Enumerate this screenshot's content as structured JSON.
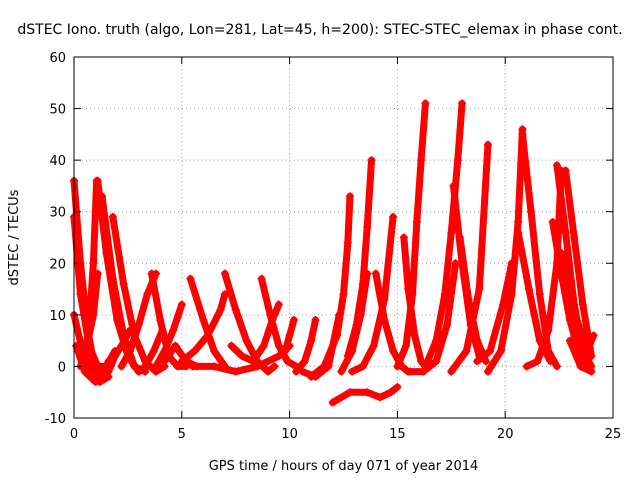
{
  "chart_data": {
    "type": "line",
    "title": "dSTEC Iono. truth (algo, Lon=281, Lat=45, h=200): STEC-STEC_elemax in phase cont.",
    "xlabel": "GPS time / hours of day 071 of year 2014",
    "ylabel": "dSTEC  / TECUs",
    "xlim": [
      0,
      25
    ],
    "ylim": [
      -10,
      60
    ],
    "xticks": [
      0,
      5,
      10,
      15,
      20,
      25
    ],
    "yticks": [
      -10,
      0,
      10,
      20,
      30,
      40,
      50,
      60
    ],
    "grid": true,
    "legend": "none",
    "marker": "plus",
    "series_color": "#ff0000",
    "series": [
      {
        "x": [
          0.0,
          0.3,
          0.6,
          0.9,
          1.2,
          1.5,
          1.8
        ],
        "y": [
          36,
          20,
          8,
          1,
          -2,
          -1,
          2
        ]
      },
      {
        "x": [
          0.0,
          0.3,
          0.7,
          1.1,
          1.5,
          1.9
        ],
        "y": [
          29,
          14,
          4,
          0,
          0,
          3
        ]
      },
      {
        "x": [
          0.0,
          0.4,
          0.8,
          1.2,
          1.6
        ],
        "y": [
          10,
          3,
          -1,
          -3,
          -2
        ]
      },
      {
        "x": [
          0.1,
          0.5,
          1.0,
          1.3,
          1.6
        ],
        "y": [
          4,
          -1,
          -3,
          -2,
          1
        ]
      },
      {
        "x": [
          0.3,
          0.6,
          0.9,
          1.1
        ],
        "y": [
          0,
          4,
          10,
          18
        ]
      },
      {
        "x": [
          0.5,
          0.7,
          0.9,
          1.05
        ],
        "y": [
          1,
          8,
          20,
          36
        ]
      },
      {
        "x": [
          1.1,
          1.5,
          2.0,
          2.5,
          3.0,
          3.4
        ],
        "y": [
          36,
          22,
          9,
          2,
          -1,
          0
        ]
      },
      {
        "x": [
          1.3,
          1.8,
          2.3,
          2.8,
          3.3
        ],
        "y": [
          33,
          17,
          6,
          0,
          -1
        ]
      },
      {
        "x": [
          1.6,
          1.9,
          2.2,
          2.6
        ],
        "y": [
          -1,
          2,
          4,
          7
        ]
      },
      {
        "x": [
          1.8,
          2.3,
          2.8,
          3.3,
          3.8,
          4.2
        ],
        "y": [
          29,
          16,
          6,
          1,
          -1,
          0
        ]
      },
      {
        "x": [
          2.2,
          2.6,
          3.0,
          3.4,
          3.8
        ],
        "y": [
          0,
          3,
          8,
          14,
          18
        ]
      },
      {
        "x": [
          3.6,
          4.0,
          4.4,
          4.8,
          5.2
        ],
        "y": [
          18,
          9,
          2,
          0,
          0
        ]
      },
      {
        "x": [
          3.0,
          3.3,
          3.7,
          4.1
        ],
        "y": [
          -1,
          0,
          3,
          7
        ]
      },
      {
        "x": [
          3.8,
          4.2,
          4.6,
          5.0
        ],
        "y": [
          0,
          3,
          7,
          12
        ]
      },
      {
        "x": [
          4.2,
          4.7,
          5.2,
          5.7
        ],
        "y": [
          1,
          4,
          1,
          0
        ]
      },
      {
        "x": [
          5.0,
          5.6,
          6.2,
          6.8,
          7.0
        ],
        "y": [
          1,
          3,
          6,
          11,
          14
        ]
      },
      {
        "x": [
          5.4,
          6.0,
          6.5,
          7.0
        ],
        "y": [
          17,
          9,
          3,
          0
        ]
      },
      {
        "x": [
          7.0,
          7.5,
          8.0,
          8.5,
          9.0,
          9.3
        ],
        "y": [
          18,
          11,
          5,
          1,
          -1,
          0
        ]
      },
      {
        "x": [
          5.5,
          6.5,
          7.5,
          8.5,
          9.5,
          10.0
        ],
        "y": [
          0,
          0,
          -1,
          0,
          2,
          4
        ]
      },
      {
        "x": [
          7.3,
          7.8,
          8.3,
          8.8,
          9.2,
          9.5
        ],
        "y": [
          4,
          2,
          1,
          4,
          9,
          12
        ]
      },
      {
        "x": [
          8.7,
          9.1,
          9.5,
          9.9,
          10.3
        ],
        "y": [
          17,
          10,
          4,
          1,
          0
        ]
      },
      {
        "x": [
          9.8,
          10.0,
          10.2
        ],
        "y": [
          3,
          6,
          9
        ]
      },
      {
        "x": [
          10.3,
          10.7,
          11.0,
          11.2
        ],
        "y": [
          -1,
          1,
          5,
          9
        ]
      },
      {
        "x": [
          10.6,
          11.2,
          11.8,
          12.3
        ],
        "y": [
          -1,
          -2,
          0,
          10
        ]
      },
      {
        "x": [
          11.0,
          11.6,
          12.2,
          12.5,
          12.7,
          12.8
        ],
        "y": [
          -2,
          0,
          6,
          14,
          24,
          33
        ]
      },
      {
        "x": [
          12.4,
          12.9,
          13.3,
          13.6
        ],
        "y": [
          -1,
          3,
          10,
          18
        ]
      },
      {
        "x": [
          12.7,
          13.1,
          13.4,
          13.6,
          13.8
        ],
        "y": [
          2,
          8,
          16,
          27,
          40
        ]
      },
      {
        "x": [
          12.9,
          13.4,
          13.9,
          14.4,
          14.8
        ],
        "y": [
          -1,
          0,
          4,
          13,
          29
        ]
      },
      {
        "x": [
          12.0,
          12.8,
          13.6,
          14.2,
          14.7,
          15.0
        ],
        "y": [
          -7,
          -5,
          -5,
          -6,
          -5,
          -4
        ]
      },
      {
        "x": [
          14.0,
          14.4,
          14.8,
          15.2,
          15.5
        ],
        "y": [
          18,
          9,
          3,
          0,
          -1
        ]
      },
      {
        "x": [
          15.3,
          15.5,
          15.8,
          16.1,
          16.3
        ],
        "y": [
          25,
          15,
          6,
          1,
          0
        ]
      },
      {
        "x": [
          15.0,
          15.4,
          15.7,
          15.9,
          16.1,
          16.3
        ],
        "y": [
          0,
          4,
          14,
          28,
          40,
          51
        ]
      },
      {
        "x": [
          15.6,
          16.2,
          16.8,
          17.3,
          17.7
        ],
        "y": [
          -1,
          -1,
          1,
          8,
          20
        ]
      },
      {
        "x": [
          16.3,
          16.8,
          17.2,
          17.5,
          17.8,
          18.0
        ],
        "y": [
          0,
          5,
          14,
          26,
          40,
          51
        ]
      },
      {
        "x": [
          17.6,
          18.0,
          18.4,
          18.8
        ],
        "y": [
          35,
          20,
          8,
          2
        ]
      },
      {
        "x": [
          17.9,
          18.3,
          18.7,
          19.1
        ],
        "y": [
          25,
          13,
          5,
          1
        ]
      },
      {
        "x": [
          17.5,
          18.2,
          18.8,
          19.2
        ],
        "y": [
          -1,
          3,
          15,
          43
        ]
      },
      {
        "x": [
          18.7,
          19.3,
          19.9,
          20.3
        ],
        "y": [
          1,
          3,
          12,
          20
        ]
      },
      {
        "x": [
          19.2,
          19.8,
          20.3,
          20.6,
          20.8
        ],
        "y": [
          -1,
          3,
          14,
          28,
          46
        ]
      },
      {
        "x": [
          20.8,
          21.2,
          21.6,
          22.0,
          22.4
        ],
        "y": [
          45,
          30,
          14,
          3,
          0
        ]
      },
      {
        "x": [
          20.6,
          21.1,
          21.6,
          22.1
        ],
        "y": [
          26,
          15,
          5,
          1
        ]
      },
      {
        "x": [
          21.0,
          21.5,
          22.0,
          22.4,
          22.6
        ],
        "y": [
          0,
          1,
          7,
          20,
          38
        ]
      },
      {
        "x": [
          22.4,
          22.8,
          23.2,
          23.6,
          24.0
        ],
        "y": [
          39,
          26,
          12,
          3,
          0
        ]
      },
      {
        "x": [
          22.2,
          22.6,
          23.0,
          23.4,
          23.8
        ],
        "y": [
          28,
          18,
          9,
          3,
          0
        ]
      },
      {
        "x": [
          22.6,
          23.0,
          23.4,
          23.8,
          24.1
        ],
        "y": [
          22,
          14,
          8,
          3,
          6
        ]
      },
      {
        "x": [
          22.8,
          23.2,
          23.6,
          24.0
        ],
        "y": [
          38,
          25,
          12,
          2
        ]
      },
      {
        "x": [
          23.0,
          23.5,
          24.0
        ],
        "y": [
          5,
          0,
          -1
        ]
      }
    ]
  }
}
